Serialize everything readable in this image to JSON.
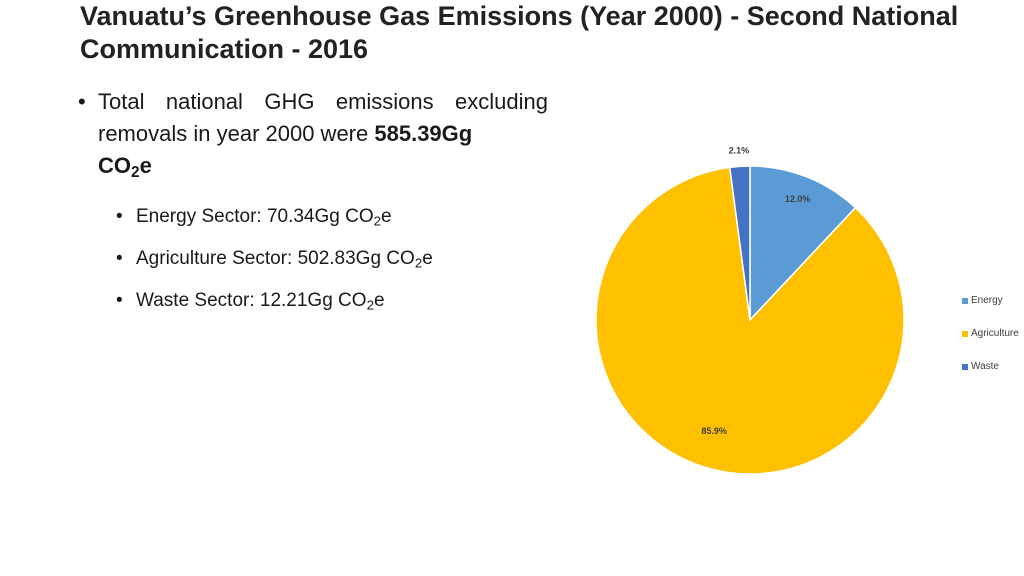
{
  "title": "Vanuatu’s Greenhouse Gas Emissions (Year 2000) - Second National Communication - 2016",
  "main_bullet": {
    "prefix": "Total national GHG emissions excluding removals in year 2000 were",
    "value": "585.39Gg",
    "unit_main": "CO",
    "unit_sub": "2",
    "unit_tail": "e"
  },
  "sub_bullets": [
    {
      "text": "Energy Sector: 70.34Gg CO",
      "sub": "2",
      "tail": "e"
    },
    {
      "text": "Agriculture Sector: 502.83Gg CO",
      "sub": "2",
      "tail": "e"
    },
    {
      "text": "Waste Sector: 12.21Gg CO",
      "sub": "2",
      "tail": "e"
    }
  ],
  "chart_data": {
    "type": "pie",
    "title": "",
    "categories": [
      "Energy",
      "Agriculture",
      "Waste"
    ],
    "values": [
      12.0,
      85.9,
      2.1
    ],
    "labels": [
      "12.0%",
      "85.9%",
      "2.1%"
    ],
    "colors": [
      "#5B9BD5",
      "#FFC000",
      "#4472C4"
    ],
    "legend_position": "right"
  }
}
